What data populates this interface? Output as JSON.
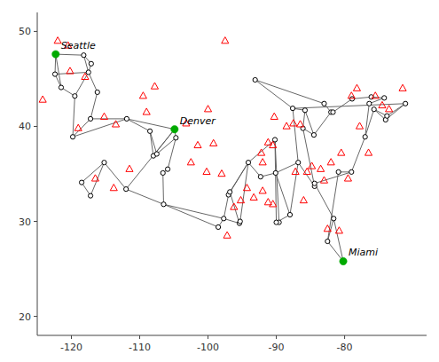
{
  "chart_data": {
    "type": "network",
    "series": [
      {
        "type": "scatter",
        "marker": "open-circle",
        "color": "black",
        "x": [
          -122.3,
          -118.2,
          -117.1,
          -122.4,
          -117.5,
          -116.2,
          -121.5,
          -119.5,
          -117.2,
          -115.2,
          -119.8,
          -118.5,
          -117.2,
          -111.9,
          -112.0,
          -104.9,
          -104.7,
          -105.9,
          -106.6,
          -108.0,
          -108.5,
          -107.5,
          -106.5,
          -98.5,
          -97.7,
          -97.0,
          -96.8,
          -95.4,
          -95.3,
          -94.1,
          -92.3,
          -90.2,
          -89.6,
          -90.0,
          -90.1,
          -88.0,
          -86.8,
          -84.4,
          -84.4,
          -81.6,
          -80.2,
          -82.5,
          -80.9,
          -79.0,
          -77.0,
          -75.7,
          -74.0,
          -73.8,
          -71.1,
          -87.6,
          -93.1,
          -83.0,
          -86.1,
          -85.8,
          -84.5,
          -82.0,
          -81.7,
          -78.9,
          -76.1,
          -74.2,
          -76.4
        ],
        "values": [
          47.6,
          47.5,
          46.6,
          45.5,
          45.7,
          43.6,
          44.1,
          43.2,
          40.8,
          36.2,
          38.9,
          34.1,
          32.7,
          40.8,
          33.4,
          39.7,
          38.8,
          35.5,
          35.1,
          36.9,
          39.5,
          37.1,
          31.8,
          29.4,
          30.3,
          32.8,
          33.1,
          29.8,
          30.0,
          36.2,
          34.7,
          38.6,
          29.9,
          29.9,
          35.1,
          30.7,
          36.2,
          33.7,
          34.0,
          30.3,
          25.8,
          27.9,
          35.2,
          35.2,
          38.9,
          41.8,
          40.7,
          41.1,
          42.4,
          41.9,
          44.9,
          42.4,
          39.8,
          41.7,
          39.1,
          41.5,
          41.5,
          42.9,
          43.1,
          43.0,
          42.4
        ]
      },
      {
        "type": "scatter",
        "marker": "open-triangle",
        "color": "red",
        "x": [
          -122.0,
          -120.5,
          -124.2,
          -120.2,
          -118.0,
          -115.2,
          -119.0,
          -113.5,
          -116.5,
          -113.8,
          -111.5,
          -109.5,
          -109.0,
          -107.8,
          -103.2,
          -101.5,
          -102.5,
          -100.2,
          -100.0,
          -99.2,
          -98.0,
          -97.2,
          -96.2,
          -95.2,
          -94.3,
          -93.3,
          -92.0,
          -91.2,
          -90.5,
          -90.5,
          -91.2,
          -92.2,
          -92.0,
          -90.3,
          -88.5,
          -87.5,
          -87.2,
          -86.5,
          -86.0,
          -85.5,
          -84.8,
          -83.5,
          -83.0,
          -82.0,
          -82.5,
          -80.8,
          -79.5,
          -80.5,
          -79.0,
          -77.8,
          -76.5,
          -75.5,
          -74.5,
          -73.5,
          -71.5,
          -78.2,
          -97.5
        ],
        "values": [
          49.0,
          48.5,
          42.8,
          45.8,
          45.2,
          41.0,
          39.8,
          40.2,
          34.5,
          33.5,
          35.5,
          43.2,
          41.5,
          44.2,
          40.3,
          38.0,
          36.2,
          35.2,
          41.8,
          38.2,
          35.0,
          28.5,
          31.5,
          32.2,
          33.5,
          32.5,
          33.2,
          32.0,
          31.8,
          38.0,
          38.3,
          37.2,
          36.2,
          41.0,
          40.0,
          40.3,
          35.2,
          40.2,
          32.2,
          35.2,
          35.8,
          35.5,
          34.3,
          36.2,
          29.2,
          29.0,
          34.5,
          37.2,
          43.2,
          40.0,
          37.2,
          43.2,
          42.2,
          41.8,
          44.0,
          44.0,
          49.0
        ]
      },
      {
        "type": "scatter",
        "marker": "circle",
        "color": "#00aa00",
        "labels": [
          "Seattle",
          "Denver",
          "Miami"
        ],
        "x": [
          -122.3,
          -104.9,
          -80.2
        ],
        "values": [
          47.6,
          39.7,
          25.8
        ]
      }
    ],
    "edges": [
      [
        0,
        1
      ],
      [
        0,
        3
      ],
      [
        0,
        6
      ],
      [
        1,
        2
      ],
      [
        1,
        4
      ],
      [
        2,
        4
      ],
      [
        3,
        4
      ],
      [
        3,
        6
      ],
      [
        4,
        5
      ],
      [
        4,
        7
      ],
      [
        5,
        8
      ],
      [
        6,
        7
      ],
      [
        7,
        10
      ],
      [
        8,
        10
      ],
      [
        8,
        13
      ],
      [
        9,
        14
      ],
      [
        9,
        11
      ],
      [
        10,
        13
      ],
      [
        11,
        12
      ],
      [
        12,
        9
      ],
      [
        13,
        15
      ],
      [
        13,
        20
      ],
      [
        14,
        15
      ],
      [
        14,
        22
      ],
      [
        15,
        16
      ],
      [
        15,
        19
      ],
      [
        16,
        17
      ],
      [
        16,
        21
      ],
      [
        17,
        18
      ],
      [
        18,
        22
      ],
      [
        19,
        20
      ],
      [
        20,
        21
      ],
      [
        22,
        23
      ],
      [
        22,
        24
      ],
      [
        23,
        24
      ],
      [
        24,
        25
      ],
      [
        24,
        27
      ],
      [
        25,
        26
      ],
      [
        25,
        29
      ],
      [
        26,
        29
      ],
      [
        26,
        27
      ],
      [
        27,
        28
      ],
      [
        28,
        29
      ],
      [
        29,
        30
      ],
      [
        29,
        31
      ],
      [
        30,
        34
      ],
      [
        31,
        32
      ],
      [
        31,
        33
      ],
      [
        32,
        33
      ],
      [
        33,
        35
      ],
      [
        34,
        35
      ],
      [
        34,
        36
      ],
      [
        35,
        36
      ],
      [
        36,
        37
      ],
      [
        36,
        49
      ],
      [
        37,
        38
      ],
      [
        37,
        52
      ],
      [
        38,
        39
      ],
      [
        38,
        43
      ],
      [
        39,
        40
      ],
      [
        39,
        41
      ],
      [
        40,
        41
      ],
      [
        41,
        42
      ],
      [
        42,
        43
      ],
      [
        43,
        44
      ],
      [
        44,
        45
      ],
      [
        44,
        60
      ],
      [
        45,
        46
      ],
      [
        45,
        47
      ],
      [
        46,
        47
      ],
      [
        46,
        48
      ],
      [
        47,
        48
      ],
      [
        48,
        49
      ],
      [
        49,
        50
      ],
      [
        49,
        53
      ],
      [
        50,
        51
      ],
      [
        51,
        55
      ],
      [
        52,
        53
      ],
      [
        52,
        54
      ],
      [
        53,
        54
      ],
      [
        54,
        55
      ],
      [
        55,
        56
      ],
      [
        56,
        57
      ],
      [
        57,
        58
      ],
      [
        58,
        59
      ],
      [
        59,
        60
      ]
    ],
    "xlim": [
      -125,
      -68
    ],
    "ylim": [
      18,
      52
    ],
    "xticks": [
      -120,
      -110,
      -100,
      -90,
      -80
    ],
    "yticks": [
      20,
      30,
      40,
      50
    ]
  }
}
